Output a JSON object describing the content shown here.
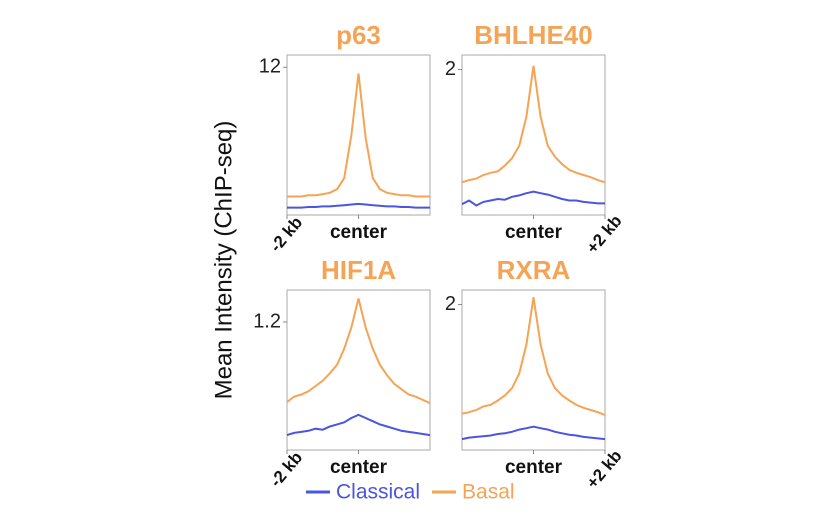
{
  "chart_data": [
    {
      "type": "line",
      "title": "p63",
      "ylabel": "Mean Intensity (ChIP-seq)",
      "x": [
        -2,
        -1.8,
        -1.6,
        -1.4,
        -1.2,
        -1,
        -0.8,
        -0.6,
        -0.4,
        -0.2,
        0,
        0.2,
        0.4,
        0.6,
        0.8,
        1,
        1.2,
        1.4,
        1.6,
        1.8,
        2
      ],
      "xlim": [
        -2,
        2
      ],
      "xticks": [
        {
          "value": -2,
          "label": "-2 kb"
        },
        {
          "value": 0,
          "label": "center"
        }
      ],
      "ylim": [
        0,
        13
      ],
      "yticks": [
        12
      ],
      "series": [
        {
          "name": "Classical",
          "color": "#4a55e0",
          "values": [
            0.6,
            0.6,
            0.6,
            0.65,
            0.65,
            0.7,
            0.7,
            0.75,
            0.8,
            0.85,
            0.9,
            0.85,
            0.8,
            0.75,
            0.7,
            0.7,
            0.65,
            0.65,
            0.6,
            0.6,
            0.6
          ]
        },
        {
          "name": "Basal",
          "color": "#f5a455",
          "values": [
            1.5,
            1.5,
            1.5,
            1.6,
            1.6,
            1.7,
            1.8,
            2.1,
            3.0,
            6.5,
            11.5,
            6.3,
            3.0,
            2.1,
            1.8,
            1.7,
            1.6,
            1.6,
            1.5,
            1.5,
            1.5
          ]
        }
      ]
    },
    {
      "type": "line",
      "title": "BHLHE40",
      "x": [
        -2,
        -1.8,
        -1.6,
        -1.4,
        -1.2,
        -1,
        -0.8,
        -0.6,
        -0.4,
        -0.2,
        0,
        0.2,
        0.4,
        0.6,
        0.8,
        1,
        1.2,
        1.4,
        1.6,
        1.8,
        2
      ],
      "xlim": [
        -2,
        2
      ],
      "xticks": [
        {
          "value": 0,
          "label": "center"
        },
        {
          "value": 2,
          "label": "+2 kb"
        }
      ],
      "ylim": [
        0,
        2.2
      ],
      "yticks": [
        2
      ],
      "series": [
        {
          "name": "Classical",
          "color": "#4a55e0",
          "values": [
            0.15,
            0.2,
            0.13,
            0.18,
            0.2,
            0.22,
            0.21,
            0.25,
            0.27,
            0.3,
            0.32,
            0.3,
            0.28,
            0.25,
            0.22,
            0.2,
            0.2,
            0.18,
            0.17,
            0.16,
            0.16
          ]
        },
        {
          "name": "Basal",
          "color": "#f5a455",
          "values": [
            0.45,
            0.48,
            0.5,
            0.55,
            0.58,
            0.6,
            0.68,
            0.78,
            0.95,
            1.35,
            2.05,
            1.35,
            0.95,
            0.8,
            0.7,
            0.62,
            0.58,
            0.55,
            0.52,
            0.48,
            0.45
          ]
        }
      ]
    },
    {
      "type": "line",
      "title": "HIF1A",
      "x": [
        -2,
        -1.8,
        -1.6,
        -1.4,
        -1.2,
        -1,
        -0.8,
        -0.6,
        -0.4,
        -0.2,
        0,
        0.2,
        0.4,
        0.6,
        0.8,
        1,
        1.2,
        1.4,
        1.6,
        1.8,
        2
      ],
      "xlim": [
        -2,
        2
      ],
      "xticks": [
        {
          "value": -2,
          "label": "-2 kb"
        },
        {
          "value": 0,
          "label": "center"
        }
      ],
      "ylim": [
        0,
        1.5
      ],
      "yticks": [
        1.2
      ],
      "series": [
        {
          "name": "Classical",
          "color": "#4a55e0",
          "values": [
            0.14,
            0.16,
            0.17,
            0.18,
            0.2,
            0.19,
            0.22,
            0.24,
            0.26,
            0.3,
            0.33,
            0.3,
            0.27,
            0.24,
            0.22,
            0.2,
            0.18,
            0.17,
            0.16,
            0.15,
            0.14
          ]
        },
        {
          "name": "Basal",
          "color": "#f5a455",
          "values": [
            0.45,
            0.5,
            0.52,
            0.55,
            0.6,
            0.65,
            0.72,
            0.8,
            0.95,
            1.15,
            1.42,
            1.15,
            0.95,
            0.8,
            0.7,
            0.62,
            0.57,
            0.52,
            0.5,
            0.47,
            0.44
          ]
        }
      ]
    },
    {
      "type": "line",
      "title": "RXRA",
      "x": [
        -2,
        -1.8,
        -1.6,
        -1.4,
        -1.2,
        -1,
        -0.8,
        -0.6,
        -0.4,
        -0.2,
        0,
        0.2,
        0.4,
        0.6,
        0.8,
        1,
        1.2,
        1.4,
        1.6,
        1.8,
        2
      ],
      "xlim": [
        -2,
        2
      ],
      "xticks": [
        {
          "value": 0,
          "label": "center"
        },
        {
          "value": 2,
          "label": "+2 kb"
        }
      ],
      "ylim": [
        0,
        2.2
      ],
      "yticks": [
        2
      ],
      "series": [
        {
          "name": "Classical",
          "color": "#4a55e0",
          "values": [
            0.15,
            0.17,
            0.18,
            0.19,
            0.2,
            0.22,
            0.23,
            0.25,
            0.28,
            0.3,
            0.32,
            0.3,
            0.28,
            0.25,
            0.23,
            0.21,
            0.2,
            0.18,
            0.17,
            0.16,
            0.15
          ]
        },
        {
          "name": "Basal",
          "color": "#f5a455",
          "values": [
            0.5,
            0.52,
            0.55,
            0.6,
            0.62,
            0.68,
            0.75,
            0.85,
            1.05,
            1.45,
            2.1,
            1.45,
            1.05,
            0.85,
            0.75,
            0.68,
            0.62,
            0.58,
            0.55,
            0.52,
            0.48
          ]
        }
      ]
    }
  ]
}
